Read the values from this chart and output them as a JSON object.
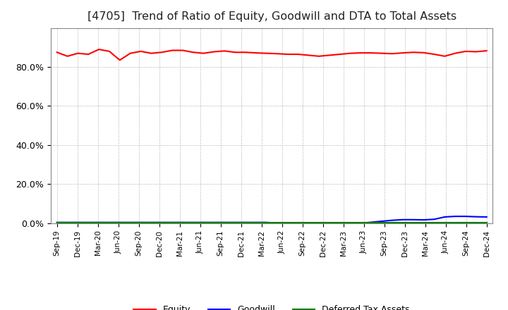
{
  "title": "[4705]  Trend of Ratio of Equity, Goodwill and DTA to Total Assets",
  "title_fontsize": 11.5,
  "ylim": [
    0,
    100
  ],
  "yticks": [
    0,
    20,
    40,
    60,
    80
  ],
  "ytick_labels": [
    "0.0%",
    "20.0%",
    "40.0%",
    "60.0%",
    "80.0%"
  ],
  "background_color": "#ffffff",
  "grid_color": "#aaaaaa",
  "series": {
    "Equity": {
      "color": "#ff0000",
      "values": [
        87.5,
        85.5,
        87.0,
        86.5,
        89.0,
        88.0,
        83.5,
        87.0,
        88.0,
        87.0,
        87.5,
        88.5,
        88.5,
        87.5,
        87.0,
        87.8,
        88.2,
        87.5,
        87.5,
        87.2,
        87.0,
        86.8,
        86.5,
        86.5,
        86.0,
        85.5,
        86.0,
        86.5,
        87.0,
        87.2,
        87.2,
        87.0,
        86.8,
        87.2,
        87.5,
        87.3,
        86.5,
        85.5,
        87.0,
        88.0,
        87.8,
        88.3
      ]
    },
    "Goodwill": {
      "color": "#0000ff",
      "values": [
        0.4,
        0.4,
        0.4,
        0.4,
        0.4,
        0.4,
        0.4,
        0.4,
        0.4,
        0.4,
        0.4,
        0.4,
        0.4,
        0.4,
        0.4,
        0.4,
        0.4,
        0.4,
        0.4,
        0.4,
        0.4,
        0.0,
        0.0,
        0.0,
        0.0,
        0.0,
        0.0,
        0.0,
        0.0,
        0.0,
        0.5,
        1.0,
        1.5,
        1.8,
        1.8,
        1.7,
        2.0,
        3.2,
        3.5,
        3.5,
        3.3,
        3.2
      ]
    },
    "Deferred Tax Assets": {
      "color": "#008000",
      "values": [
        0.2,
        0.2,
        0.2,
        0.2,
        0.2,
        0.2,
        0.2,
        0.2,
        0.2,
        0.2,
        0.2,
        0.2,
        0.2,
        0.2,
        0.2,
        0.2,
        0.2,
        0.2,
        0.2,
        0.2,
        0.2,
        0.2,
        0.2,
        0.2,
        0.2,
        0.2,
        0.2,
        0.2,
        0.2,
        0.2,
        0.2,
        0.2,
        0.2,
        0.2,
        0.2,
        0.2,
        0.2,
        0.2,
        0.2,
        0.2,
        0.2,
        0.2
      ]
    }
  },
  "xtick_labels": [
    "Sep-19",
    "Dec-19",
    "Mar-20",
    "Jun-20",
    "Sep-20",
    "Dec-20",
    "Mar-21",
    "Jun-21",
    "Sep-21",
    "Dec-21",
    "Mar-22",
    "Jun-22",
    "Sep-22",
    "Dec-22",
    "Mar-23",
    "Jun-23",
    "Sep-23",
    "Dec-23",
    "Mar-24",
    "Jun-24",
    "Sep-24",
    "Dec-24"
  ],
  "legend_ncol": 3
}
